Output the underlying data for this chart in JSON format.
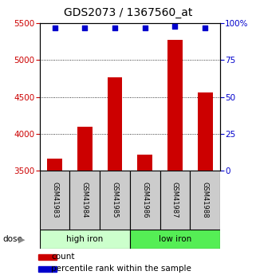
{
  "title": "GDS2073 / 1367560_at",
  "samples": [
    "GSM41983",
    "GSM41984",
    "GSM41985",
    "GSM41986",
    "GSM41987",
    "GSM41988"
  ],
  "counts": [
    3660,
    4100,
    4770,
    3720,
    5280,
    4560
  ],
  "percentile_ranks": [
    97,
    97,
    97,
    97,
    98,
    97
  ],
  "groups": [
    "high iron",
    "high iron",
    "high iron",
    "low iron",
    "low iron",
    "low iron"
  ],
  "group_colors": {
    "high iron": "#ccffcc",
    "low iron": "#55ee55"
  },
  "bar_color": "#cc0000",
  "dot_color": "#0000cc",
  "ylim_left": [
    3500,
    5500
  ],
  "ylim_right": [
    0,
    100
  ],
  "yticks_left": [
    3500,
    4000,
    4500,
    5000,
    5500
  ],
  "yticks_right": [
    0,
    25,
    50,
    75,
    100
  ],
  "ylabel_left_color": "#cc0000",
  "ylabel_right_color": "#0000cc",
  "title_fontsize": 10,
  "tick_fontsize": 7.5,
  "sample_box_color": "#cccccc",
  "legend_count": "count",
  "legend_percentile": "percentile rank within the sample"
}
